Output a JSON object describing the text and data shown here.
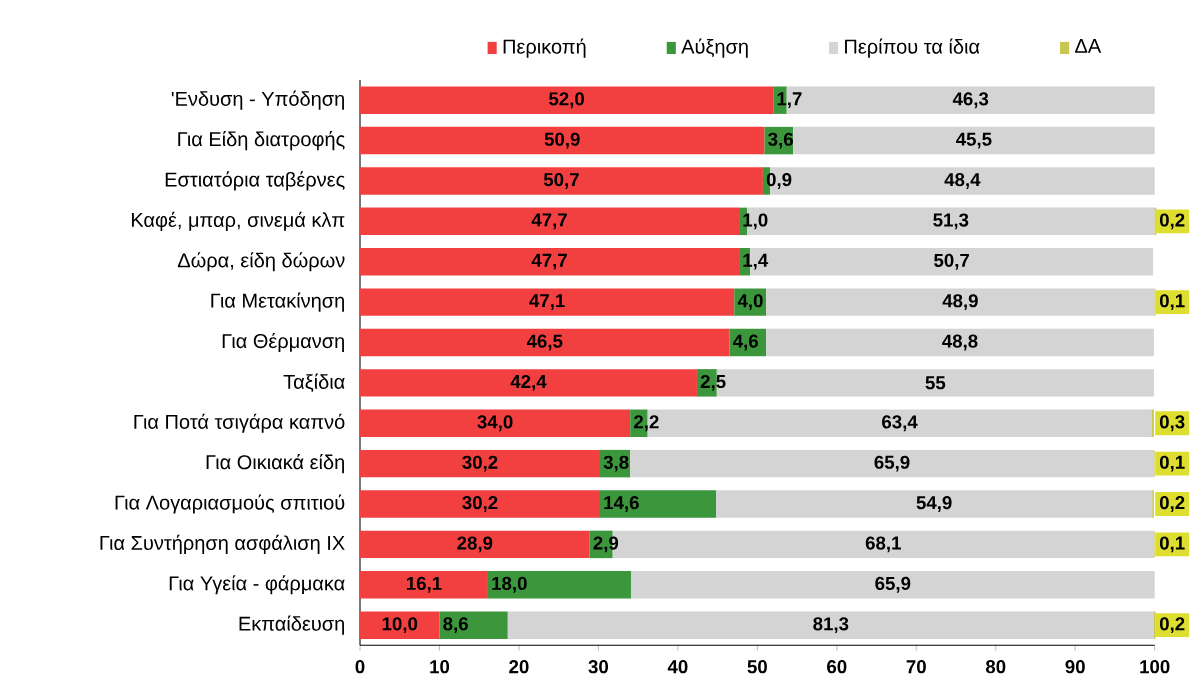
{
  "chart_data": {
    "type": "bar",
    "orientation": "horizontal",
    "stacked": true,
    "legend": "top",
    "grid": false,
    "categories": [
      "'Ενδυση - Υπόδηση",
      "Για Είδη διατροφής",
      "Εστιατόρια ταβέρνες",
      "Καφέ, μπαρ, σινεμά κλπ",
      "Δώρα, είδη δώρων",
      "Για Μετακίνηση",
      "Για Θέρμανση",
      "Ταξίδια",
      "Για Ποτά  τσιγάρα καπνό",
      "Για Οικιακά είδη",
      "Για Λογαριασμούς σπιτιού",
      "Για Συντήρηση  ασφάλιση ΙΧ",
      "Για Υγεία - φάρμακα",
      "Εκπαίδευση"
    ],
    "series": [
      {
        "name": "Περικοπή",
        "color": "#f24040",
        "values": [
          52.0,
          50.9,
          50.7,
          47.7,
          47.7,
          47.1,
          46.5,
          42.4,
          34.0,
          30.2,
          30.2,
          28.9,
          16.1,
          10.0
        ],
        "value_labels": [
          "52,0",
          "50,9",
          "50,7",
          "47,7",
          "47,7",
          "47,1",
          "46,5",
          "42,4",
          "34,0",
          "30,2",
          "30,2",
          "28,9",
          "16,1",
          "10,0"
        ]
      },
      {
        "name": "Αύξηση",
        "color": "#3c963c",
        "values": [
          1.7,
          3.6,
          0.9,
          1.0,
          1.4,
          4.0,
          4.6,
          2.5,
          2.2,
          3.8,
          14.6,
          2.9,
          18.0,
          8.6
        ],
        "value_labels": [
          "1,7",
          "3,6",
          "0,9",
          "1,0",
          "1,4",
          "4,0",
          "4,6",
          "2,5",
          "2,2",
          "3,8",
          "14,6",
          "2,9",
          "18,0",
          "8,6"
        ]
      },
      {
        "name": "Περίπου τα ίδια",
        "color": "#d4d4d4",
        "values": [
          46.3,
          45.5,
          48.4,
          51.3,
          50.7,
          48.9,
          48.8,
          55,
          63.4,
          65.9,
          54.9,
          68.1,
          65.9,
          81.3
        ],
        "value_labels": [
          "46,3",
          "45,5",
          "48,4",
          "51,3",
          "50,7",
          "48,9",
          "48,8",
          "55",
          "63,4",
          "65,9",
          "54,9",
          "68,1",
          "65,9",
          "81,3"
        ]
      },
      {
        "name": "ΔΑ",
        "color": "#c8c850",
        "values": [
          null,
          null,
          null,
          0.2,
          null,
          0.1,
          null,
          null,
          0.3,
          0.1,
          0.2,
          0.1,
          null,
          0.2
        ],
        "value_labels": [
          null,
          null,
          null,
          "0,2",
          null,
          "0,1",
          null,
          null,
          "0,3",
          "0,1",
          "0,2",
          "0,1",
          null,
          "0,2"
        ]
      }
    ],
    "xlim": [
      0,
      100
    ],
    "xticks": [
      0,
      10,
      20,
      30,
      40,
      50,
      60,
      70,
      80,
      90,
      100
    ]
  }
}
